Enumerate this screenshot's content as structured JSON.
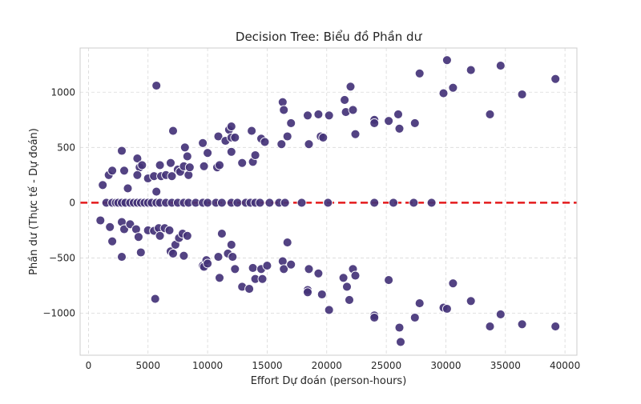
{
  "chart_data": {
    "type": "scatter",
    "title": "Decision Tree: Biểu đồ Phần dư",
    "xlabel": "Effort Dự đoán (person-hours)",
    "ylabel": "Phần dư (Thực tế - Dự đoán)",
    "xlim": [
      -700,
      41000
    ],
    "ylim": [
      -1380,
      1400
    ],
    "xticks": [
      0,
      5000,
      10000,
      15000,
      20000,
      25000,
      30000,
      35000,
      40000
    ],
    "yticks": [
      -1000,
      -500,
      0,
      500,
      1000
    ],
    "grid": true,
    "reference_line": {
      "y": 0,
      "color": "#e41a1c",
      "style": "dashed"
    },
    "point_color": "#443378",
    "series": [
      {
        "points": [
          [
            1200,
            160
          ],
          [
            1700,
            250
          ],
          [
            2000,
            290
          ],
          [
            2800,
            470
          ],
          [
            3000,
            290
          ],
          [
            3300,
            130
          ],
          [
            4100,
            400
          ],
          [
            4300,
            320
          ],
          [
            4500,
            340
          ],
          [
            4100,
            250
          ],
          [
            5000,
            220
          ],
          [
            5500,
            240
          ],
          [
            5700,
            100
          ],
          [
            6000,
            340
          ],
          [
            6100,
            240
          ],
          [
            6500,
            250
          ],
          [
            6900,
            360
          ],
          [
            7000,
            240
          ],
          [
            7100,
            650
          ],
          [
            7500,
            300
          ],
          [
            7700,
            280
          ],
          [
            8000,
            330
          ],
          [
            8100,
            500
          ],
          [
            8300,
            420
          ],
          [
            8400,
            250
          ],
          [
            8500,
            320
          ],
          [
            9600,
            540
          ],
          [
            9700,
            330
          ],
          [
            10000,
            450
          ],
          [
            10800,
            320
          ],
          [
            10900,
            600
          ],
          [
            11000,
            340
          ],
          [
            11500,
            560
          ],
          [
            11800,
            660
          ],
          [
            12000,
            690
          ],
          [
            12000,
            590
          ],
          [
            12000,
            460
          ],
          [
            12300,
            590
          ],
          [
            12900,
            360
          ],
          [
            13700,
            650
          ],
          [
            13800,
            370
          ],
          [
            14000,
            430
          ],
          [
            14500,
            580
          ],
          [
            14800,
            550
          ],
          [
            16200,
            530
          ],
          [
            16300,
            910
          ],
          [
            16400,
            840
          ],
          [
            16700,
            600
          ],
          [
            17000,
            720
          ],
          [
            18400,
            790
          ],
          [
            18500,
            530
          ],
          [
            19300,
            800
          ],
          [
            19500,
            600
          ],
          [
            19700,
            590
          ],
          [
            20200,
            790
          ],
          [
            21500,
            930
          ],
          [
            21600,
            820
          ],
          [
            22000,
            1050
          ],
          [
            22200,
            840
          ],
          [
            22400,
            620
          ],
          [
            24000,
            750
          ],
          [
            24000,
            720
          ],
          [
            25200,
            740
          ],
          [
            26000,
            800
          ],
          [
            26100,
            670
          ],
          [
            27400,
            720
          ],
          [
            27800,
            1170
          ],
          [
            29800,
            990
          ],
          [
            30100,
            1290
          ],
          [
            30600,
            1040
          ],
          [
            32100,
            1200
          ],
          [
            33700,
            800
          ],
          [
            34600,
            1240
          ],
          [
            36400,
            980
          ],
          [
            39200,
            1120
          ],
          [
            5700,
            1060
          ],
          [
            1000,
            -160
          ],
          [
            1800,
            -220
          ],
          [
            2000,
            -350
          ],
          [
            2800,
            -175
          ],
          [
            2800,
            -490
          ],
          [
            3000,
            -240
          ],
          [
            3500,
            -195
          ],
          [
            4000,
            -240
          ],
          [
            4200,
            -310
          ],
          [
            4400,
            -450
          ],
          [
            5000,
            -250
          ],
          [
            5500,
            -255
          ],
          [
            5600,
            -870
          ],
          [
            5900,
            -230
          ],
          [
            6000,
            -300
          ],
          [
            6400,
            -230
          ],
          [
            6800,
            -250
          ],
          [
            6900,
            -440
          ],
          [
            7100,
            -460
          ],
          [
            7300,
            -380
          ],
          [
            7600,
            -320
          ],
          [
            7900,
            -280
          ],
          [
            8000,
            -480
          ],
          [
            8300,
            -300
          ],
          [
            9600,
            -570
          ],
          [
            9700,
            -580
          ],
          [
            9900,
            -520
          ],
          [
            10000,
            -550
          ],
          [
            10900,
            -490
          ],
          [
            11000,
            -680
          ],
          [
            11200,
            -280
          ],
          [
            11700,
            -460
          ],
          [
            12000,
            -380
          ],
          [
            12100,
            -490
          ],
          [
            12300,
            -600
          ],
          [
            12900,
            -760
          ],
          [
            13500,
            -780
          ],
          [
            13800,
            -590
          ],
          [
            14000,
            -690
          ],
          [
            14500,
            -600
          ],
          [
            14600,
            -690
          ],
          [
            15000,
            -570
          ],
          [
            16300,
            -530
          ],
          [
            16400,
            -600
          ],
          [
            16700,
            -360
          ],
          [
            17000,
            -560
          ],
          [
            18400,
            -790
          ],
          [
            18400,
            -810
          ],
          [
            18500,
            -600
          ],
          [
            19300,
            -640
          ],
          [
            19600,
            -830
          ],
          [
            20200,
            -970
          ],
          [
            21400,
            -680
          ],
          [
            21700,
            -760
          ],
          [
            21900,
            -880
          ],
          [
            22200,
            -600
          ],
          [
            22400,
            -660
          ],
          [
            24000,
            -1020
          ],
          [
            24000,
            -1040
          ],
          [
            25200,
            -700
          ],
          [
            26100,
            -1130
          ],
          [
            26200,
            -1260
          ],
          [
            27400,
            -1040
          ],
          [
            27800,
            -910
          ],
          [
            29800,
            -950
          ],
          [
            30100,
            -960
          ],
          [
            30600,
            -730
          ],
          [
            32100,
            -890
          ],
          [
            33700,
            -1120
          ],
          [
            34600,
            -1010
          ],
          [
            36400,
            -1100
          ],
          [
            39200,
            -1120
          ],
          [
            1500,
            0
          ],
          [
            2000,
            0
          ],
          [
            2300,
            0
          ],
          [
            2500,
            0
          ],
          [
            2800,
            0
          ],
          [
            3100,
            0
          ],
          [
            3500,
            0
          ],
          [
            3800,
            0
          ],
          [
            4100,
            0
          ],
          [
            4400,
            0
          ],
          [
            4700,
            0
          ],
          [
            5000,
            0
          ],
          [
            5300,
            0
          ],
          [
            5700,
            0
          ],
          [
            6000,
            0
          ],
          [
            6500,
            0
          ],
          [
            7000,
            0
          ],
          [
            7500,
            0
          ],
          [
            8000,
            0
          ],
          [
            8400,
            0
          ],
          [
            9000,
            0
          ],
          [
            9600,
            0
          ],
          [
            10000,
            0
          ],
          [
            10700,
            0
          ],
          [
            11200,
            0
          ],
          [
            12000,
            0
          ],
          [
            12500,
            0
          ],
          [
            13200,
            0
          ],
          [
            13600,
            0
          ],
          [
            14000,
            0
          ],
          [
            14400,
            0
          ],
          [
            15200,
            0
          ],
          [
            16000,
            0
          ],
          [
            16500,
            0
          ],
          [
            17900,
            0
          ],
          [
            20100,
            0
          ],
          [
            24000,
            0
          ],
          [
            25600,
            0
          ],
          [
            27300,
            0
          ],
          [
            28800,
            0
          ]
        ]
      }
    ]
  }
}
